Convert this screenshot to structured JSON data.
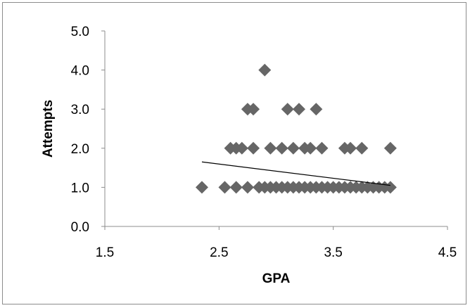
{
  "chart_data": {
    "type": "scatter",
    "title": "",
    "xlabel": "GPA",
    "ylabel": "Attempts",
    "xlim": [
      1.5,
      4.5
    ],
    "ylim": [
      0.0,
      5.0
    ],
    "x_ticks": [
      "1.5",
      "2.5",
      "3.5",
      "4.5"
    ],
    "y_ticks": [
      "0.0",
      "1.0",
      "2.0",
      "3.0",
      "4.0",
      "5.0"
    ],
    "grid": false,
    "legend": "none",
    "marker_color": "#666666",
    "trendline_color": "#000000",
    "trendline": {
      "x": [
        2.35,
        4.0
      ],
      "y": [
        1.65,
        1.05
      ]
    },
    "series": [
      {
        "x": [
          2.9,
          2.75,
          2.8,
          3.1,
          3.2,
          3.35,
          2.6,
          2.65,
          2.7,
          2.8,
          2.95,
          3.05,
          3.15,
          3.25,
          3.3,
          3.4,
          3.6,
          3.65,
          3.75,
          4.0,
          2.35,
          2.55,
          2.65,
          2.75,
          2.85,
          2.9,
          2.95,
          3.0,
          3.05,
          3.1,
          3.15,
          3.2,
          3.25,
          3.3,
          3.35,
          3.4,
          3.45,
          3.5,
          3.55,
          3.6,
          3.65,
          3.7,
          3.75,
          3.8,
          3.85,
          3.9,
          3.95,
          4.0
        ],
        "y": [
          4,
          3,
          3,
          3,
          3,
          3,
          2,
          2,
          2,
          2,
          2,
          2,
          2,
          2,
          2,
          2,
          2,
          2,
          2,
          2,
          1,
          1,
          1,
          1,
          1,
          1,
          1,
          1,
          1,
          1,
          1,
          1,
          1,
          1,
          1,
          1,
          1,
          1,
          1,
          1,
          1,
          1,
          1,
          1,
          1,
          1,
          1,
          1
        ]
      }
    ]
  }
}
